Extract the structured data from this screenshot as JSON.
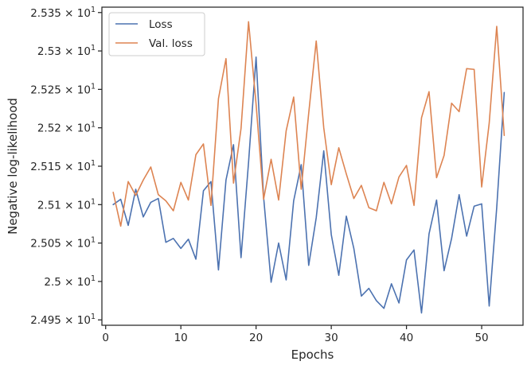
{
  "chart_data": {
    "type": "line",
    "xlabel": "Epochs",
    "ylabel": "Negative log-likelihood",
    "xlim": [
      -0.5,
      55.5
    ],
    "ylim": [
      24.943,
      25.357
    ],
    "x_ticks": [
      0,
      10,
      20,
      30,
      40,
      50
    ],
    "y_ticks": [
      {
        "value": 24.95,
        "mantissa": "2.495",
        "exponent": "1"
      },
      {
        "value": 25.0,
        "mantissa": "2.5",
        "exponent": "1"
      },
      {
        "value": 25.05,
        "mantissa": "2.505",
        "exponent": "1"
      },
      {
        "value": 25.1,
        "mantissa": "2.51",
        "exponent": "1"
      },
      {
        "value": 25.15,
        "mantissa": "2.515",
        "exponent": "1"
      },
      {
        "value": 25.2,
        "mantissa": "2.52",
        "exponent": "1"
      },
      {
        "value": 25.25,
        "mantissa": "2.525",
        "exponent": "1"
      },
      {
        "value": 25.3,
        "mantissa": "2.53",
        "exponent": "1"
      },
      {
        "value": 25.35,
        "mantissa": "2.535",
        "exponent": "1"
      }
    ],
    "grid": false,
    "legend_position": "top-left",
    "x": [
      1,
      2,
      3,
      4,
      5,
      6,
      7,
      8,
      9,
      10,
      11,
      12,
      13,
      14,
      15,
      16,
      17,
      18,
      19,
      20,
      21,
      22,
      23,
      24,
      25,
      26,
      27,
      28,
      29,
      30,
      31,
      32,
      33,
      34,
      35,
      36,
      37,
      38,
      39,
      40,
      41,
      42,
      43,
      44,
      45,
      46,
      47,
      48,
      49,
      50,
      51,
      52,
      53
    ],
    "series": [
      {
        "name": "Loss",
        "color": "#4c72b0",
        "values": [
          25.1,
          25.107,
          25.073,
          25.12,
          25.084,
          25.103,
          25.108,
          25.051,
          25.056,
          25.043,
          25.055,
          25.029,
          25.118,
          25.13,
          25.015,
          25.132,
          25.178,
          25.031,
          25.155,
          25.292,
          25.11,
          24.999,
          25.05,
          25.002,
          25.105,
          25.152,
          25.021,
          25.083,
          25.17,
          25.061,
          25.008,
          25.085,
          25.043,
          24.981,
          24.991,
          24.975,
          24.965,
          24.997,
          24.972,
          25.028,
          25.041,
          24.959,
          25.062,
          25.106,
          25.014,
          25.056,
          25.113,
          25.059,
          25.098,
          25.101,
          24.968,
          25.096,
          25.246
        ]
      },
      {
        "name": "Val. loss",
        "color": "#dd8452",
        "values": [
          25.116,
          25.072,
          25.13,
          25.112,
          25.132,
          25.149,
          25.113,
          25.105,
          25.092,
          25.129,
          25.106,
          25.165,
          25.179,
          25.099,
          25.238,
          25.29,
          25.128,
          25.199,
          25.338,
          25.231,
          25.107,
          25.159,
          25.106,
          25.196,
          25.24,
          25.12,
          25.219,
          25.313,
          25.2,
          25.126,
          25.174,
          25.14,
          25.108,
          25.125,
          25.096,
          25.092,
          25.129,
          25.101,
          25.136,
          25.151,
          25.099,
          25.213,
          25.247,
          25.135,
          25.164,
          25.232,
          25.221,
          25.277,
          25.276,
          25.123,
          25.206,
          25.332,
          25.19
        ]
      }
    ]
  }
}
